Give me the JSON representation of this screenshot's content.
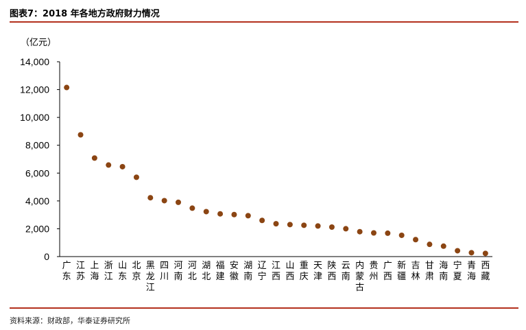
{
  "figure": {
    "title": "图表7：2018 年各地方政府财力情况",
    "source": "资料来源：财政部，华泰证券研究所"
  },
  "chart_data": {
    "type": "scatter",
    "unit_label": "（亿元）",
    "categories": [
      "广东",
      "江苏",
      "上海",
      "浙江",
      "山东",
      "北京",
      "黑龙江",
      "四川",
      "河南",
      "河北",
      "湖北",
      "福建",
      "安徽",
      "湖南",
      "辽宁",
      "江西",
      "山西",
      "重庆",
      "天津",
      "陕西",
      "云南",
      "内蒙古",
      "贵州",
      "广西",
      "新疆",
      "吉林",
      "甘肃",
      "海南",
      "宁夏",
      "青海",
      "西藏"
    ],
    "values": [
      12150,
      8750,
      7080,
      6580,
      6460,
      5700,
      4230,
      4020,
      3900,
      3480,
      3230,
      3070,
      3020,
      2940,
      2600,
      2360,
      2300,
      2250,
      2200,
      2120,
      2000,
      1790,
      1700,
      1680,
      1530,
      1220,
      880,
      750,
      420,
      280,
      230
    ],
    "ylim": [
      0,
      14000
    ],
    "yticks": [
      0,
      2000,
      4000,
      6000,
      8000,
      10000,
      12000,
      14000
    ],
    "ytick_labels": [
      "0",
      "2,000",
      "4,000",
      "6,000",
      "8,000",
      "10,000",
      "12,000",
      "14,000"
    ],
    "marker_color": "#8b4513",
    "grid": false
  }
}
